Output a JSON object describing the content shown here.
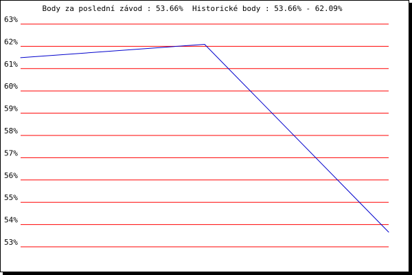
{
  "chart_data": {
    "type": "line",
    "title": "Body za poslední závod : 53.66%  Historické body : 53.66% - 62.09%",
    "xlabel": "",
    "ylabel": "",
    "ylim": [
      53,
      63
    ],
    "yticks": [
      "53%",
      "54%",
      "55%",
      "56%",
      "57%",
      "58%",
      "59%",
      "60%",
      "61%",
      "62%",
      "63%"
    ],
    "grid": true,
    "grid_color": "#ff0000",
    "series": [
      {
        "x": [
          0,
          1,
          2
        ],
        "values": [
          61.49,
          62.09,
          53.66
        ],
        "color": "#0000cc"
      }
    ]
  }
}
